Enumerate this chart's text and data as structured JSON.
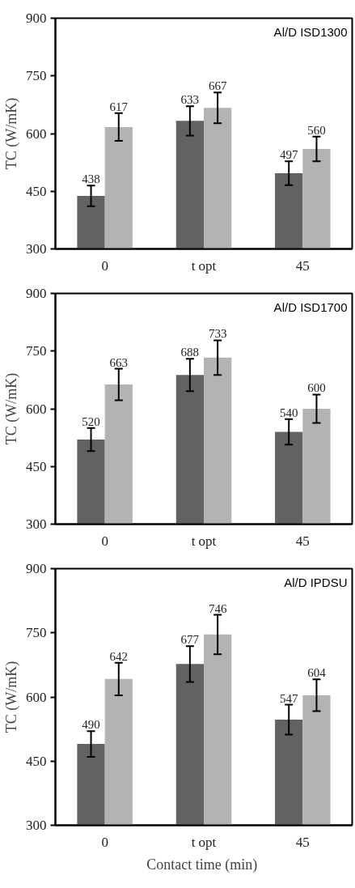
{
  "chart_data": [
    {
      "type": "bar",
      "title": "Al/D ISD1300",
      "ylabel": "TC (W/mK)",
      "categories": [
        "0",
        "t opt",
        "45"
      ],
      "ylim": [
        300,
        900
      ],
      "yticks": [
        300,
        450,
        600,
        750,
        900
      ],
      "grid": false,
      "data_labels": true,
      "tick_labels": "xy",
      "series": [
        {
          "color": "#626262",
          "values": [
            438,
            633,
            497
          ],
          "errors": [
            27,
            38,
            31
          ]
        },
        {
          "color": "#b3b3b3",
          "values": [
            617,
            667,
            560
          ],
          "errors": [
            36,
            40,
            32
          ]
        }
      ]
    },
    {
      "type": "bar",
      "title": "Al/D ISD1700",
      "ylabel": "TC (W/mK)",
      "categories": [
        "0",
        "t opt",
        "45"
      ],
      "ylim": [
        300,
        900
      ],
      "yticks": [
        300,
        450,
        600,
        750,
        900
      ],
      "grid": false,
      "data_labels": true,
      "series": [
        {
          "color": "#626262",
          "values": [
            520,
            688,
            540
          ],
          "errors": [
            30,
            42,
            33
          ]
        },
        {
          "color": "#b3b3b3",
          "values": [
            663,
            733,
            600
          ],
          "errors": [
            41,
            45,
            37
          ]
        }
      ]
    },
    {
      "type": "bar",
      "title": "Al/D IPDSU",
      "ylabel": "TC (W/mK)",
      "xlabel": "Contact time  (min)",
      "categories": [
        "0",
        "t opt",
        "45"
      ],
      "ylim": [
        300,
        900
      ],
      "yticks": [
        300,
        450,
        600,
        750,
        900
      ],
      "grid": false,
      "data_labels": true,
      "series": [
        {
          "color": "#626262",
          "values": [
            490,
            677,
            547
          ],
          "errors": [
            30,
            42,
            35
          ]
        },
        {
          "color": "#b3b3b3",
          "values": [
            642,
            746,
            604
          ],
          "errors": [
            38,
            46,
            37
          ]
        }
      ]
    }
  ]
}
